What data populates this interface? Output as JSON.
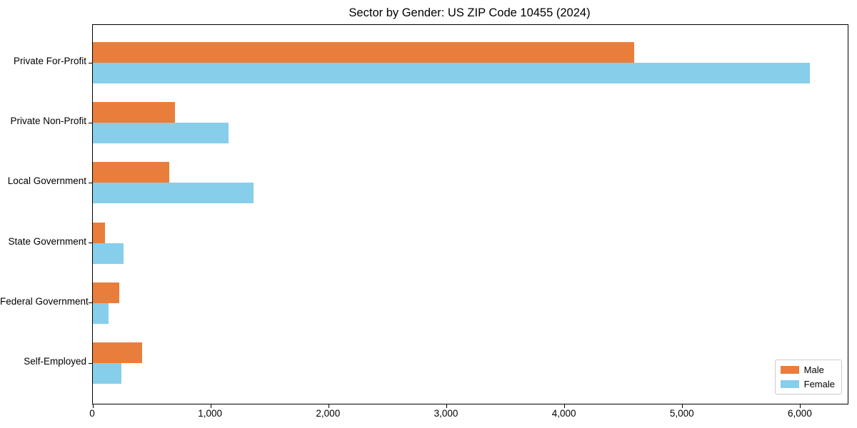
{
  "chart_data": {
    "type": "bar",
    "orientation": "horizontal",
    "title": "Sector by Gender: US ZIP Code 10455 (2024)",
    "categories": [
      "Private For-Profit",
      "Private Non-Profit",
      "Local Government",
      "State Government",
      "Federal Government",
      "Self-Employed"
    ],
    "series": [
      {
        "name": "Male",
        "color": "#E97E3C",
        "values": [
          4590,
          695,
          650,
          100,
          225,
          415
        ]
      },
      {
        "name": "Female",
        "color": "#87CEEB",
        "values": [
          6080,
          1150,
          1360,
          260,
          130,
          240
        ]
      }
    ],
    "xlim": [
      0,
      6400
    ],
    "xticks": [
      0,
      1000,
      2000,
      3000,
      4000,
      5000,
      6000
    ],
    "xtick_labels": [
      "0",
      "1,000",
      "2,000",
      "3,000",
      "4,000",
      "5,000",
      "6,000"
    ],
    "ylabel": "",
    "xlabel": "",
    "grid": false,
    "legend": {
      "position": "lower right"
    },
    "colors": {
      "background": "#ffffff",
      "axis": "#000000",
      "legend_border": "#cccccc"
    }
  }
}
